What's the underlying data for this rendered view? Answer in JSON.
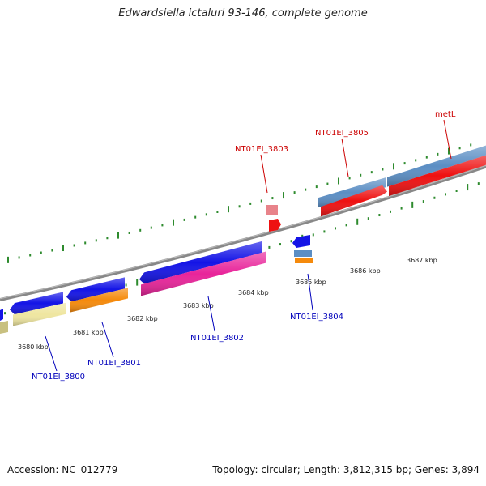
{
  "title": "Edwardsiella ictaluri 93-146, complete genome",
  "footer": {
    "accession": "Accession: NC_012779",
    "summary": "Topology: circular; Length: 3,812,315 bp; Genes: 3,894"
  },
  "colors": {
    "backbone": "#888888",
    "ticks": "#2e8b2e",
    "top_labels": "#cc0000",
    "bottom_labels": "#0000bb",
    "gene_blue": "#1414e6",
    "cds_red": "#ee1111",
    "steelblue": "#5b8ec4",
    "magenta": "#e8249a",
    "orange": "#f58a0c",
    "khaki": "#efe6a0",
    "pink": "#e8838a"
  },
  "kbp_labels": [
    "3680 kbp",
    "3681 kbp",
    "3682 kbp",
    "3683 kbp",
    "3684 kbp",
    "3685 kbp",
    "3686 kbp",
    "3687 kbp"
  ],
  "gene_labels_top": [
    "NT01EI_3803",
    "NT01EI_3805",
    "metL"
  ],
  "gene_labels_bottom": [
    "NT01EI_3800",
    "NT01EI_3801",
    "NT01EI_3802",
    "NT01EI_3804"
  ]
}
